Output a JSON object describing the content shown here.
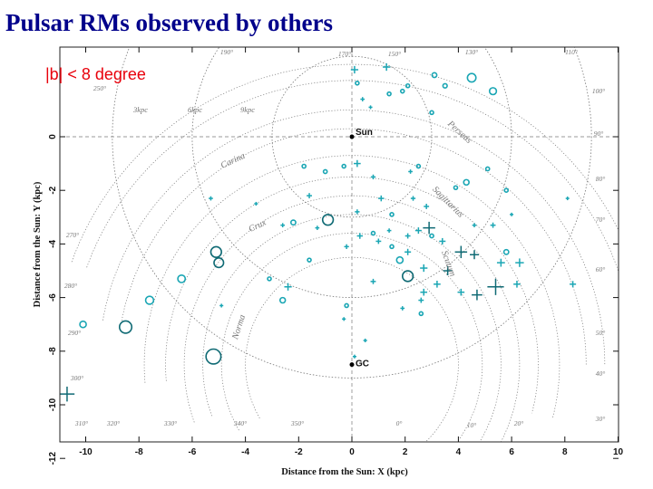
{
  "title": "Pulsar RMs observed by others",
  "subtitle": "|b| < 8 degree",
  "chart_data": {
    "type": "scatter",
    "xlabel": "Distance from the Sun: X (kpc)",
    "ylabel": "Distance from the Sun: Y (kpc)",
    "xlim": [
      -11,
      10
    ],
    "ylim": [
      -12.5,
      3
    ],
    "xticks": [
      "-10",
      "-8",
      "-6",
      "-4",
      "-2",
      "0",
      "2",
      "4",
      "6",
      "8",
      "10"
    ],
    "yticks": [
      "0",
      "-2",
      "-4",
      "-6",
      "-8",
      "-10",
      "-12"
    ],
    "ring_labels": [
      "3kpc",
      "6kpc",
      "9kpc"
    ],
    "arm_labels": [
      "Perseus",
      "Carina",
      "Sagittarius",
      "Crux",
      "Scutum",
      "Norma"
    ],
    "markers": {
      "sun": "Sun",
      "gc": "GC"
    },
    "longitude_labels": [
      "170°",
      "150°",
      "130°",
      "110°",
      "100°",
      "90°",
      "80°",
      "70°",
      "60°",
      "50°",
      "40°",
      "30°",
      "20°",
      "10°",
      "0°",
      "350°",
      "340°",
      "330°",
      "320°",
      "310°",
      "300°",
      "290°",
      "280°",
      "270°",
      "250°",
      "190°"
    ],
    "colors": {
      "point": "#1aa6b4",
      "point_large": "#0f6a74",
      "axis": "#111111",
      "grid": "#777777",
      "title": "#00008b",
      "subtitle": "#e8000b"
    },
    "series": [
      {
        "marker": "circle",
        "points": [
          [
            -10.1,
            -7.0,
            0.12
          ],
          [
            -8.5,
            -7.1,
            0.23
          ],
          [
            -7.6,
            -6.1,
            0.15
          ],
          [
            -6.4,
            -5.3,
            0.14
          ],
          [
            -5.1,
            -4.3,
            0.2
          ],
          [
            -5.0,
            -4.7,
            0.18
          ],
          [
            -5.2,
            -8.2,
            0.28
          ],
          [
            -2.6,
            -6.1,
            0.1
          ],
          [
            -2.2,
            -3.2,
            0.09
          ],
          [
            -1.8,
            -1.1,
            0.07
          ],
          [
            -0.3,
            -1.1,
            0.05
          ],
          [
            -0.9,
            -3.1,
            0.2
          ],
          [
            0.2,
            2.0,
            0.06
          ],
          [
            1.4,
            1.6,
            0.06
          ],
          [
            1.9,
            1.7,
            0.05
          ],
          [
            2.1,
            1.9,
            0.05
          ],
          [
            3.1,
            2.3,
            0.09
          ],
          [
            4.5,
            2.2,
            0.16
          ],
          [
            5.3,
            1.7,
            0.13
          ],
          [
            3.5,
            1.9,
            0.08
          ],
          [
            3.0,
            0.9,
            0.05
          ],
          [
            2.5,
            -1.1,
            0.06
          ],
          [
            4.3,
            -1.7,
            0.1
          ],
          [
            5.8,
            -2.0,
            0.06
          ],
          [
            5.1,
            -1.2,
            0.07
          ],
          [
            1.5,
            -2.9,
            0.06
          ],
          [
            1.8,
            -4.6,
            0.12
          ],
          [
            2.1,
            -5.2,
            0.2
          ],
          [
            1.5,
            -4.1,
            0.06
          ],
          [
            3.0,
            -3.7,
            0.07
          ],
          [
            5.8,
            -4.3,
            0.09
          ],
          [
            3.9,
            -1.9,
            0.06
          ],
          [
            -3.1,
            -5.3,
            0.05
          ],
          [
            1.3,
            -12.3,
            0.24
          ],
          [
            2.6,
            -6.6,
            0.05
          ],
          [
            -0.2,
            -6.3,
            0.06
          ],
          [
            -1.6,
            -4.6,
            0.06
          ],
          [
            0.8,
            -3.6,
            0.06
          ],
          [
            -1.0,
            -1.3,
            0.07
          ]
        ]
      },
      {
        "marker": "plus",
        "points": [
          [
            -10.7,
            -9.6,
            0.28
          ],
          [
            -5.3,
            -2.3,
            0.08
          ],
          [
            -3.6,
            -2.5,
            0.07
          ],
          [
            -2.6,
            -3.3,
            0.08
          ],
          [
            -2.4,
            -5.6,
            0.14
          ],
          [
            -1.6,
            -2.2,
            0.1
          ],
          [
            -1.3,
            -3.4,
            0.08
          ],
          [
            0.1,
            2.5,
            0.14
          ],
          [
            1.3,
            2.6,
            0.14
          ],
          [
            0.4,
            1.4,
            0.08
          ],
          [
            0.7,
            1.1,
            0.07
          ],
          [
            0.2,
            -1.0,
            0.13
          ],
          [
            0.8,
            -1.5,
            0.09
          ],
          [
            1.1,
            -2.3,
            0.11
          ],
          [
            0.2,
            -2.8,
            0.09
          ],
          [
            0.3,
            -3.7,
            0.11
          ],
          [
            -0.2,
            -4.1,
            0.09
          ],
          [
            1.0,
            -3.9,
            0.1
          ],
          [
            1.4,
            -3.5,
            0.08
          ],
          [
            2.1,
            -3.7,
            0.1
          ],
          [
            2.5,
            -3.5,
            0.12
          ],
          [
            2.8,
            -2.6,
            0.1
          ],
          [
            2.3,
            -2.3,
            0.09
          ],
          [
            2.2,
            -1.3,
            0.08
          ],
          [
            2.9,
            -3.4,
            0.23
          ],
          [
            3.4,
            -3.9,
            0.12
          ],
          [
            4.1,
            -4.3,
            0.23
          ],
          [
            4.6,
            -4.4,
            0.17
          ],
          [
            2.1,
            -4.3,
            0.12
          ],
          [
            2.7,
            -4.9,
            0.14
          ],
          [
            3.6,
            -5.0,
            0.17
          ],
          [
            2.7,
            -5.8,
            0.13
          ],
          [
            3.2,
            -5.5,
            0.13
          ],
          [
            2.6,
            -6.1,
            0.1
          ],
          [
            4.1,
            -5.8,
            0.13
          ],
          [
            4.7,
            -5.9,
            0.2
          ],
          [
            5.4,
            -5.6,
            0.31
          ],
          [
            5.6,
            -4.7,
            0.15
          ],
          [
            6.3,
            -4.7,
            0.16
          ],
          [
            6.2,
            -5.5,
            0.13
          ],
          [
            5.3,
            -3.3,
            0.1
          ],
          [
            4.6,
            -3.3,
            0.08
          ],
          [
            0.8,
            -5.4,
            0.1
          ],
          [
            1.9,
            -6.4,
            0.08
          ],
          [
            0.5,
            -7.6,
            0.07
          ],
          [
            -4.9,
            -6.3,
            0.07
          ],
          [
            8.3,
            -5.5,
            0.12
          ],
          [
            8.1,
            -2.3,
            0.06
          ],
          [
            6.0,
            -2.9,
            0.06
          ],
          [
            -0.3,
            -6.8,
            0.07
          ],
          [
            0.1,
            -8.2,
            0.07
          ]
        ]
      }
    ]
  }
}
